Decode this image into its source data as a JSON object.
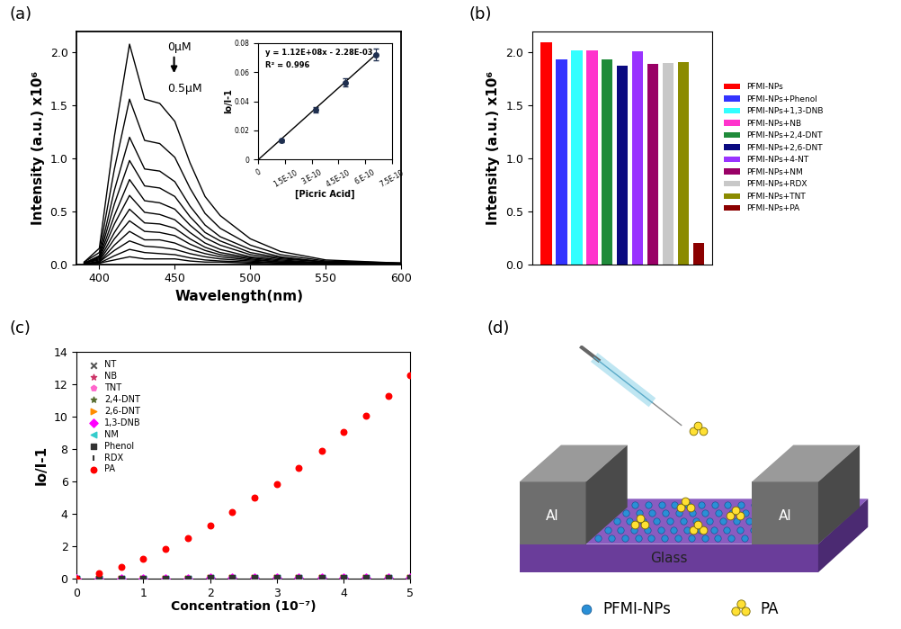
{
  "chart_data": [
    {
      "panel": "(a)",
      "type": "line",
      "xlabel": "Wavelength(nm)",
      "ylabel": "Intensity (a.u.) x10⁶",
      "color": "#000000",
      "x": [
        390,
        400,
        410,
        420,
        430,
        440,
        450,
        460,
        470,
        480,
        500,
        520,
        550,
        600
      ],
      "series": [
        {
          "values": [
            0.02,
            0.15,
            1.21,
            2.08,
            1.56,
            1.52,
            1.35,
            0.96,
            0.64,
            0.46,
            0.24,
            0.12,
            0.04,
            0.01
          ]
        },
        {
          "values": [
            0.02,
            0.11,
            0.9,
            1.56,
            1.17,
            1.14,
            1.01,
            0.72,
            0.48,
            0.34,
            0.18,
            0.09,
            0.03,
            0.01
          ]
        },
        {
          "values": [
            0.01,
            0.08,
            0.7,
            1.2,
            0.9,
            0.88,
            0.78,
            0.55,
            0.37,
            0.26,
            0.14,
            0.07,
            0.02,
            0.01
          ]
        },
        {
          "values": [
            0.01,
            0.07,
            0.57,
            0.98,
            0.74,
            0.72,
            0.64,
            0.45,
            0.3,
            0.22,
            0.11,
            0.06,
            0.02,
            0.0
          ]
        },
        {
          "values": [
            0.01,
            0.06,
            0.46,
            0.8,
            0.6,
            0.58,
            0.52,
            0.37,
            0.25,
            0.18,
            0.09,
            0.05,
            0.02,
            0.0
          ]
        },
        {
          "values": [
            0.01,
            0.05,
            0.38,
            0.65,
            0.49,
            0.47,
            0.42,
            0.3,
            0.2,
            0.14,
            0.07,
            0.04,
            0.01,
            0.0
          ]
        },
        {
          "values": [
            0.01,
            0.04,
            0.3,
            0.52,
            0.39,
            0.38,
            0.34,
            0.24,
            0.16,
            0.11,
            0.06,
            0.03,
            0.01,
            0.0
          ]
        },
        {
          "values": [
            0.0,
            0.03,
            0.24,
            0.41,
            0.31,
            0.3,
            0.27,
            0.19,
            0.13,
            0.09,
            0.05,
            0.02,
            0.01,
            0.0
          ]
        },
        {
          "values": [
            0.0,
            0.02,
            0.18,
            0.31,
            0.23,
            0.23,
            0.2,
            0.14,
            0.1,
            0.07,
            0.04,
            0.02,
            0.01,
            0.0
          ]
        },
        {
          "values": [
            0.0,
            0.02,
            0.13,
            0.22,
            0.17,
            0.16,
            0.14,
            0.1,
            0.07,
            0.05,
            0.03,
            0.01,
            0.0,
            0.0
          ]
        },
        {
          "values": [
            0.0,
            0.01,
            0.08,
            0.14,
            0.11,
            0.1,
            0.09,
            0.06,
            0.04,
            0.03,
            0.02,
            0.01,
            0.0,
            0.0
          ]
        },
        {
          "values": [
            0.0,
            0.01,
            0.04,
            0.07,
            0.05,
            0.05,
            0.05,
            0.03,
            0.02,
            0.02,
            0.01,
            0.0,
            0.0,
            0.0
          ]
        }
      ],
      "xlim": [
        385,
        600
      ],
      "xticks": [
        400,
        450,
        500,
        550,
        600
      ],
      "ylim": [
        0,
        2.2
      ],
      "yticks": [
        {
          "value": 0,
          "label": "0.0"
        },
        0.5,
        {
          "value": 1,
          "label": "1.0"
        },
        1.5,
        {
          "value": 2,
          "label": "2.0"
        }
      ],
      "annotations": [
        "0µM",
        "0.5µM"
      ],
      "inset": {
        "type": "scatter",
        "xlabel": "[Picric Acid]",
        "ylabel": "Io/I-1",
        "series": [
          {
            "type": "scatter",
            "marker": "o",
            "color": "#1f2f4f",
            "x": [
              1.3e-10,
              3.2e-10,
              4.9e-10,
              6.6e-10
            ],
            "values": [
              0.013,
              0.034,
              0.053,
              0.072
            ],
            "errors": [
              0.001,
              0.002,
              0.003,
              0.004
            ]
          },
          {
            "type": "line",
            "color": "#000000",
            "x": [
              0,
              6.6e-10
            ],
            "values": [
              0,
              0.072
            ]
          }
        ],
        "annotations": [
          "y = 1.12E+08x - 2.28E-03",
          "R² = 0.996"
        ],
        "xlim": [
          0,
          7.5e-10
        ],
        "xticks": [
          0,
          {
            "value": 1.5e-10,
            "label": "1.5E-10"
          },
          {
            "value": 3e-10,
            "label": "3.E-10"
          },
          {
            "value": 4.5e-10,
            "label": "4.5E-10"
          },
          {
            "value": 6e-10,
            "label": "6.E-10"
          },
          {
            "value": 7.5e-10,
            "label": "7.5E-10"
          }
        ],
        "ylim": [
          0,
          0.08
        ],
        "yticks": [
          0,
          0.02,
          0.04,
          0.06,
          0.08
        ]
      }
    },
    {
      "panel": "(b)",
      "type": "bar",
      "ylabel": "Intensity (a.u.) x10⁶",
      "categories": [
        "PFMI-NPs",
        "PFMI-NPs+Phenol",
        "PFMI-NPs+1,3-DNB",
        "PFMI-NPs+NB",
        "PFMI-NPs+2,4-DNT",
        "PFMI-NPs+2,6-DNT",
        "PFMI-NPs+4-NT",
        "PFMI-NPs+NM",
        "PFMI-NPs+RDX",
        "PFMI-NPs+TNT",
        "PFMI-NPs+PA"
      ],
      "values": [
        2.1,
        1.94,
        2.02,
        2.02,
        1.94,
        1.88,
        2.01,
        1.89,
        1.9,
        1.91,
        0.2
      ],
      "colors": [
        "#ff0000",
        "#3333ff",
        "#33ffff",
        "#ff33cc",
        "#1f8b3a",
        "#0a0a80",
        "#9933ff",
        "#990066",
        "#c8c8c8",
        "#8b8b00",
        "#8b0000"
      ],
      "ylim": [
        0,
        2.2
      ],
      "yticks": [
        {
          "value": 0,
          "label": "0.0"
        },
        0.5,
        {
          "value": 1,
          "label": "1.0"
        },
        1.5,
        {
          "value": 2,
          "label": "2.0"
        }
      ],
      "tick_labels": "y",
      "legend": "right"
    },
    {
      "panel": "(c)",
      "type": "scatter",
      "xlabel": "Concentration (10⁻⁷)",
      "ylabel": "Io/I-1",
      "x": [
        0,
        0.33,
        0.67,
        1,
        1.33,
        1.67,
        2,
        2.33,
        2.67,
        3,
        3.33,
        3.67,
        4,
        4.33,
        4.67,
        5
      ],
      "series": [
        {
          "name": "NT",
          "marker": "x",
          "color": "#555555",
          "values": [
            0,
            0.01,
            0.02,
            0.02,
            0.03,
            0.03,
            0.04,
            0.04,
            0.05,
            0.05,
            0.06,
            0.06,
            0.07,
            0.07,
            0.08,
            0.08
          ]
        },
        {
          "name": "NB",
          "marker": "*",
          "color": "#cc3366",
          "values": [
            0,
            0.01,
            0.02,
            0.02,
            0.03,
            0.03,
            0.04,
            0.04,
            0.05,
            0.05,
            0.06,
            0.06,
            0.07,
            0.07,
            0.08,
            0.08
          ]
        },
        {
          "name": "TNT",
          "marker": "p",
          "color": "#ff66cc",
          "values": [
            0,
            0.01,
            0.02,
            0.02,
            0.03,
            0.03,
            0.04,
            0.04,
            0.05,
            0.05,
            0.06,
            0.06,
            0.07,
            0.07,
            0.08,
            0.08
          ]
        },
        {
          "name": "2,4-DNT",
          "marker": "*",
          "color": "#556b2f",
          "values": [
            0,
            0.01,
            0.02,
            0.02,
            0.03,
            0.03,
            0.04,
            0.04,
            0.05,
            0.05,
            0.06,
            0.06,
            0.07,
            0.07,
            0.08,
            0.08
          ]
        },
        {
          "name": "2,6-DNT",
          "marker": ">",
          "color": "#ff8c00",
          "values": [
            0,
            0.01,
            0.02,
            0.02,
            0.03,
            0.03,
            0.04,
            0.04,
            0.05,
            0.05,
            0.06,
            0.06,
            0.07,
            0.07,
            0.08,
            0.08
          ]
        },
        {
          "name": "1,3-DNB",
          "marker": "D",
          "color": "#ff00ff",
          "values": [
            0,
            0.01,
            0.02,
            0.02,
            0.03,
            0.03,
            0.04,
            0.04,
            0.05,
            0.05,
            0.06,
            0.06,
            0.07,
            0.07,
            0.08,
            0.08
          ]
        },
        {
          "name": "NM",
          "marker": "<",
          "color": "#33cccc",
          "values": [
            0,
            0.01,
            0.02,
            0.02,
            0.03,
            0.03,
            0.04,
            0.04,
            0.05,
            0.05,
            0.06,
            0.06,
            0.07,
            0.07,
            0.08,
            0.08
          ]
        },
        {
          "name": "Phenol",
          "marker": "s",
          "color": "#333333",
          "values": [
            0,
            0.01,
            0.02,
            0.02,
            0.03,
            0.03,
            0.04,
            0.04,
            0.05,
            0.05,
            0.06,
            0.06,
            0.07,
            0.07,
            0.08,
            0.08
          ]
        },
        {
          "name": "RDX",
          "marker": "|",
          "color": "#333333",
          "values": [
            0,
            0.01,
            0.02,
            0.02,
            0.03,
            0.03,
            0.04,
            0.04,
            0.05,
            0.05,
            0.06,
            0.06,
            0.07,
            0.07,
            0.08,
            0.08
          ]
        },
        {
          "name": "PA",
          "marker": "o",
          "color": "#ff0000",
          "values": [
            0,
            0.35,
            0.75,
            1.25,
            1.85,
            2.5,
            3.3,
            4.1,
            5.0,
            5.85,
            6.85,
            7.9,
            9.05,
            10.1,
            11.3,
            12.6
          ]
        }
      ],
      "xlim": [
        0,
        5
      ],
      "xticks": [
        0,
        1,
        2,
        3,
        4,
        5
      ],
      "ylim": [
        0,
        14
      ],
      "yticks": [
        0,
        2,
        4,
        6,
        8,
        10,
        12,
        14
      ],
      "legend": "upper left"
    }
  ],
  "diagram": {
    "panel": "(d)",
    "electrodes": [
      "Al",
      "Al"
    ],
    "substrate": "Glass",
    "labels": [
      "PFMI-NPs",
      "PA"
    ]
  }
}
